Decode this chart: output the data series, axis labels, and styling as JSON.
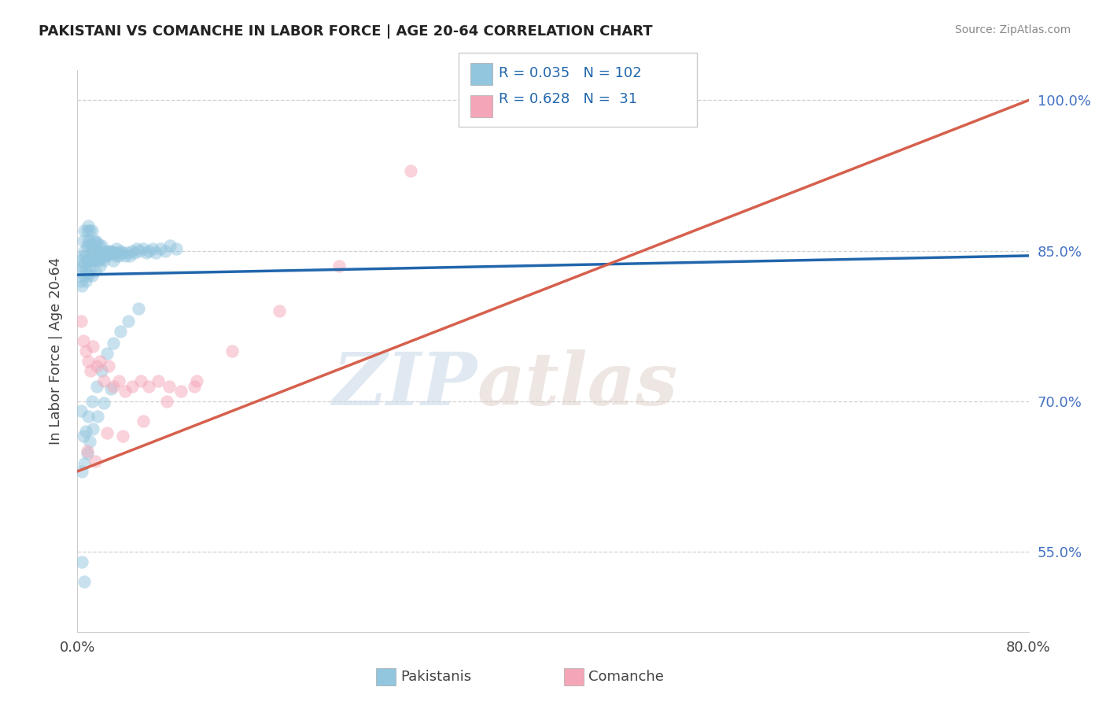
{
  "title": "PAKISTANI VS COMANCHE IN LABOR FORCE | AGE 20-64 CORRELATION CHART",
  "source": "Source: ZipAtlas.com",
  "ylabel": "In Labor Force | Age 20-64",
  "xlim": [
    0.0,
    0.8
  ],
  "ylim": [
    0.47,
    1.03
  ],
  "xtick_vals": [
    0.0,
    0.8
  ],
  "xtick_labels": [
    "0.0%",
    "80.0%"
  ],
  "ytick_vals": [
    0.55,
    0.7,
    0.85,
    1.0
  ],
  "ytick_labels": [
    "55.0%",
    "70.0%",
    "85.0%",
    "100.0%"
  ],
  "blue_color": "#92c5de",
  "pink_color": "#f4a6b8",
  "blue_line_color": "#2166ac",
  "pink_line_color": "#d6604d",
  "blue_R": "0.035",
  "blue_N": "102",
  "pink_R": "0.628",
  "pink_N": "31",
  "legend_label1": "Pakistanis",
  "legend_label2": "Comanche",
  "blue_scatter_x": [
    0.002,
    0.003,
    0.003,
    0.004,
    0.004,
    0.005,
    0.005,
    0.005,
    0.006,
    0.006,
    0.006,
    0.007,
    0.007,
    0.007,
    0.008,
    0.008,
    0.008,
    0.008,
    0.009,
    0.009,
    0.009,
    0.009,
    0.01,
    0.01,
    0.01,
    0.01,
    0.011,
    0.011,
    0.012,
    0.012,
    0.012,
    0.013,
    0.013,
    0.014,
    0.014,
    0.015,
    0.015,
    0.015,
    0.016,
    0.016,
    0.017,
    0.017,
    0.018,
    0.018,
    0.019,
    0.019,
    0.02,
    0.02,
    0.021,
    0.022,
    0.022,
    0.023,
    0.024,
    0.025,
    0.026,
    0.027,
    0.028,
    0.029,
    0.03,
    0.031,
    0.032,
    0.033,
    0.034,
    0.035,
    0.036,
    0.038,
    0.04,
    0.042,
    0.044,
    0.046,
    0.048,
    0.05,
    0.052,
    0.055,
    0.058,
    0.06,
    0.063,
    0.066,
    0.07,
    0.074,
    0.078,
    0.083,
    0.003,
    0.005,
    0.007,
    0.009,
    0.012,
    0.016,
    0.02,
    0.025,
    0.03,
    0.036,
    0.043,
    0.051,
    0.004,
    0.006,
    0.008,
    0.01,
    0.013,
    0.017,
    0.022,
    0.028,
    0.004,
    0.006
  ],
  "blue_scatter_y": [
    0.83,
    0.84,
    0.82,
    0.835,
    0.815,
    0.845,
    0.86,
    0.825,
    0.838,
    0.85,
    0.87,
    0.83,
    0.845,
    0.82,
    0.84,
    0.855,
    0.87,
    0.828,
    0.84,
    0.86,
    0.825,
    0.875,
    0.84,
    0.858,
    0.83,
    0.87,
    0.845,
    0.855,
    0.84,
    0.825,
    0.87,
    0.85,
    0.84,
    0.84,
    0.858,
    0.845,
    0.83,
    0.86,
    0.845,
    0.858,
    0.85,
    0.84,
    0.845,
    0.855,
    0.848,
    0.835,
    0.842,
    0.855,
    0.845,
    0.84,
    0.85,
    0.845,
    0.848,
    0.845,
    0.85,
    0.848,
    0.85,
    0.848,
    0.84,
    0.848,
    0.845,
    0.852,
    0.848,
    0.845,
    0.85,
    0.848,
    0.845,
    0.848,
    0.845,
    0.85,
    0.848,
    0.852,
    0.85,
    0.852,
    0.848,
    0.85,
    0.852,
    0.848,
    0.852,
    0.85,
    0.855,
    0.852,
    0.69,
    0.665,
    0.67,
    0.685,
    0.7,
    0.715,
    0.73,
    0.748,
    0.758,
    0.77,
    0.78,
    0.792,
    0.63,
    0.638,
    0.648,
    0.66,
    0.672,
    0.685,
    0.698,
    0.712,
    0.54,
    0.52
  ],
  "pink_scatter_x": [
    0.003,
    0.005,
    0.007,
    0.009,
    0.011,
    0.013,
    0.016,
    0.019,
    0.022,
    0.026,
    0.03,
    0.035,
    0.04,
    0.046,
    0.053,
    0.06,
    0.068,
    0.077,
    0.087,
    0.098,
    0.008,
    0.015,
    0.025,
    0.038,
    0.055,
    0.075,
    0.1,
    0.13,
    0.17,
    0.22,
    0.28
  ],
  "pink_scatter_y": [
    0.78,
    0.76,
    0.75,
    0.74,
    0.73,
    0.755,
    0.735,
    0.74,
    0.72,
    0.735,
    0.715,
    0.72,
    0.71,
    0.715,
    0.72,
    0.715,
    0.72,
    0.715,
    0.71,
    0.715,
    0.65,
    0.64,
    0.668,
    0.665,
    0.68,
    0.7,
    0.72,
    0.75,
    0.79,
    0.835,
    0.93
  ],
  "blue_line_x0": 0.0,
  "blue_line_x1": 0.8,
  "blue_line_y0": 0.826,
  "blue_line_y1": 0.845,
  "pink_line_x0": 0.0,
  "pink_line_x1": 0.8,
  "pink_line_y0": 0.63,
  "pink_line_y1": 1.0,
  "grid_color": "#cccccc",
  "background_color": "#ffffff",
  "watermark_zip": "ZIP",
  "watermark_atlas": "atlas"
}
